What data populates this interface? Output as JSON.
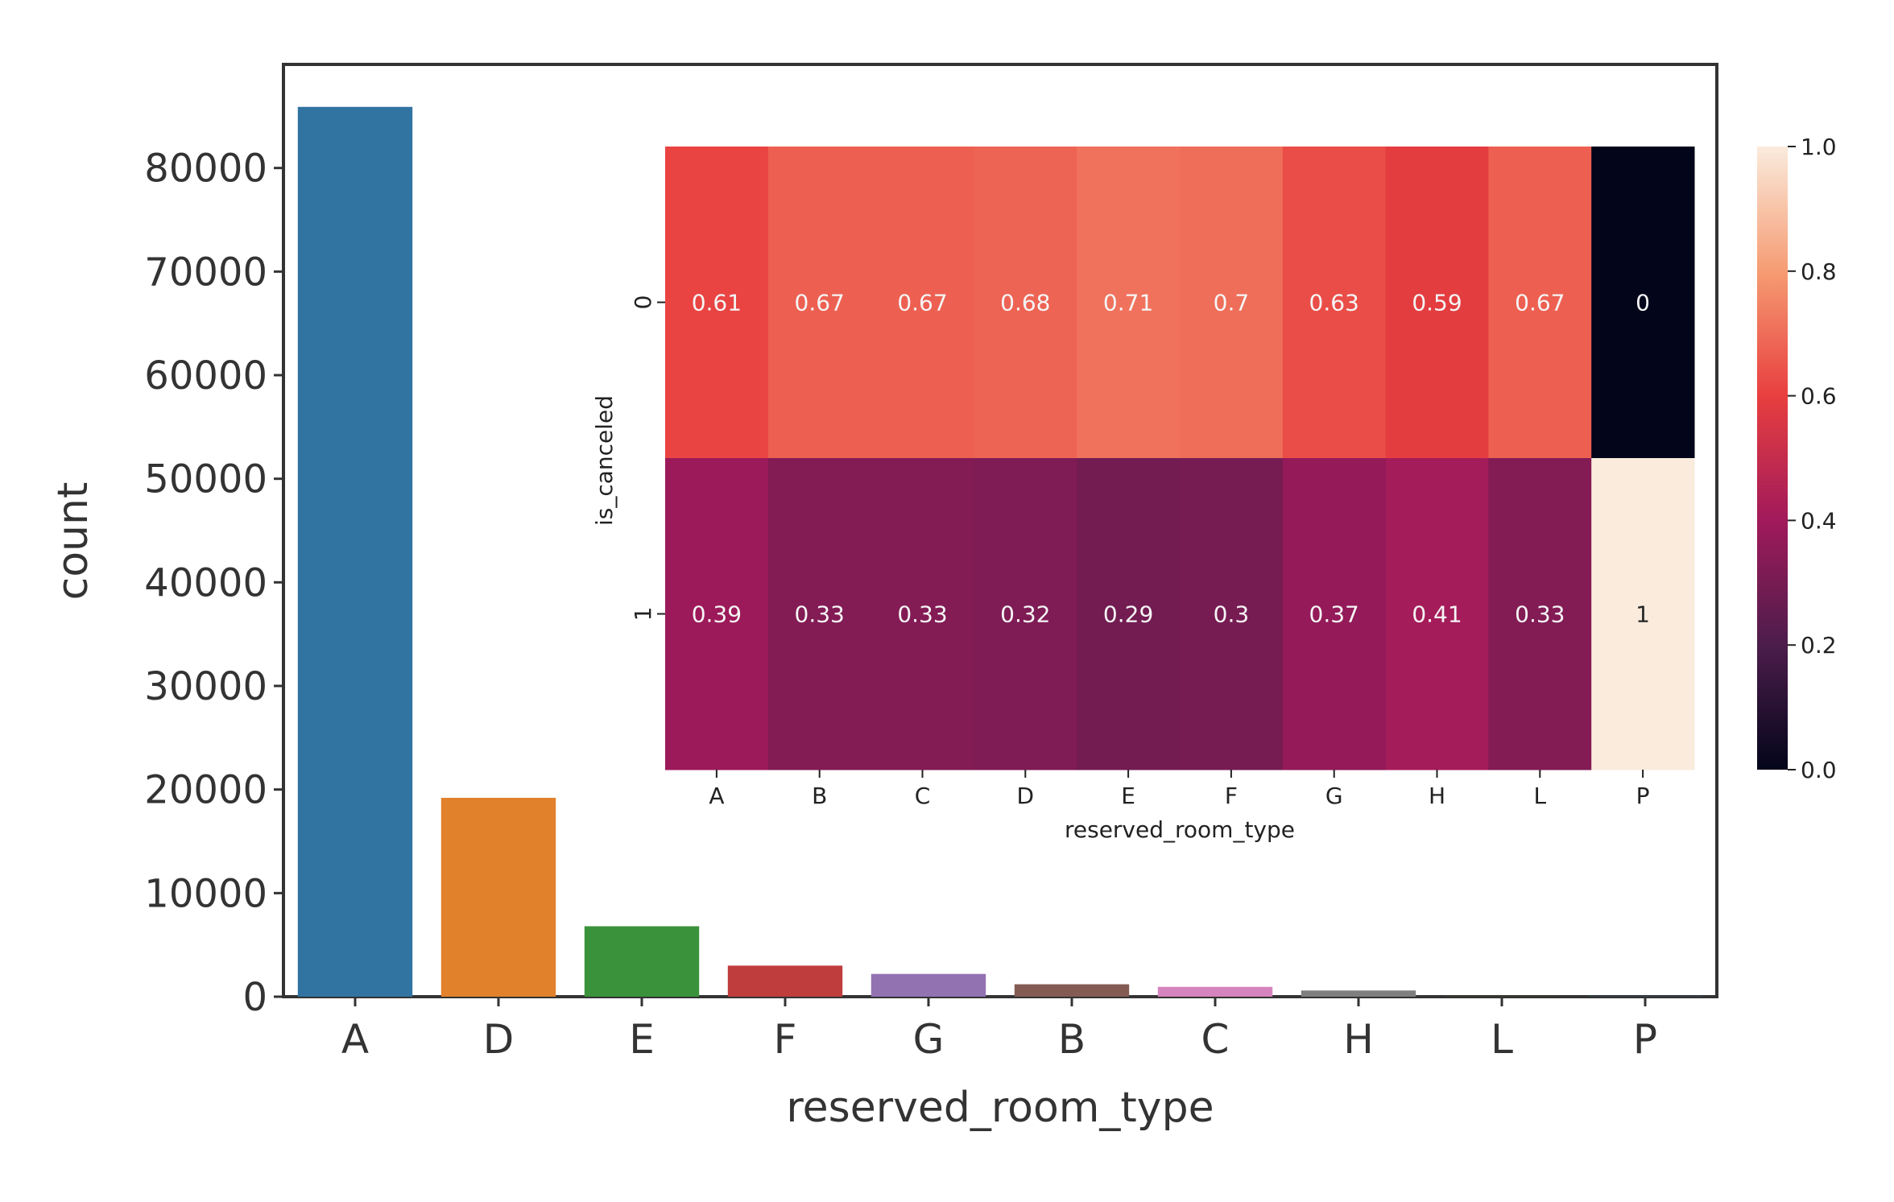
{
  "chart_data": [
    {
      "type": "bar",
      "xlabel": "reserved_room_type",
      "ylabel": "count",
      "categories": [
        "A",
        "D",
        "E",
        "F",
        "G",
        "B",
        "C",
        "H",
        "L",
        "P"
      ],
      "values": [
        85900,
        19200,
        6800,
        3000,
        2200,
        1200,
        950,
        600,
        6,
        12
      ],
      "colors": [
        "#3274a1",
        "#e1812c",
        "#3a923a",
        "#c03d3e",
        "#9372b2",
        "#845b53",
        "#d684bd",
        "#7f7f7f",
        "#a9aa35",
        "#2eb4c4"
      ],
      "ylim": [
        0,
        90000
      ],
      "yticks": [
        "0",
        "10000",
        "20000",
        "30000",
        "40000",
        "50000",
        "60000",
        "70000",
        "80000"
      ],
      "grid": false
    },
    {
      "type": "heatmap",
      "xlabel": "reserved_room_type",
      "ylabel": "is_canceled",
      "x": [
        "A",
        "B",
        "C",
        "D",
        "E",
        "F",
        "G",
        "H",
        "L",
        "P"
      ],
      "y": [
        "0",
        "1"
      ],
      "values": [
        [
          0.61,
          0.67,
          0.67,
          0.68,
          0.71,
          0.7,
          0.63,
          0.59,
          0.67,
          0
        ],
        [
          0.39,
          0.33,
          0.33,
          0.32,
          0.29,
          0.3,
          0.37,
          0.41,
          0.33,
          1
        ]
      ],
      "annotations": [
        [
          "0.61",
          "0.67",
          "0.67",
          "0.68",
          "0.71",
          "0.7",
          "0.63",
          "0.59",
          "0.67",
          "0"
        ],
        [
          "0.39",
          "0.33",
          "0.33",
          "0.32",
          "0.29",
          "0.3",
          "0.37",
          "0.41",
          "0.33",
          "1"
        ]
      ],
      "colorbar": {
        "range": [
          0.0,
          1.0
        ],
        "ticks": [
          "0.0",
          "0.2",
          "0.4",
          "0.6",
          "0.8",
          "1.0"
        ],
        "colormap": [
          "#03051a",
          "#4c1d4b",
          "#a11a5b",
          "#e83f3f",
          "#f69c73",
          "#faebdd"
        ]
      }
    }
  ]
}
